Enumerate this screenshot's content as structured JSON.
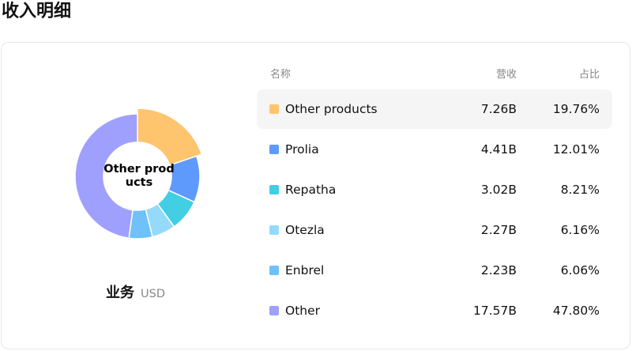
{
  "title": "收入明细",
  "caption": {
    "main": "业务",
    "sub": "USD"
  },
  "donut": {
    "center_label_line1": "Other prod",
    "center_label_line2": "ucts",
    "highlighted": "Other products"
  },
  "table": {
    "headers": {
      "name": "名称",
      "revenue": "营收",
      "share": "占比"
    },
    "rows": [
      {
        "name": "Other products",
        "revenue": "7.26B",
        "share": "19.76%",
        "value": 19.76,
        "color": "#ffc46e"
      },
      {
        "name": "Prolia",
        "revenue": "4.41B",
        "share": "12.01%",
        "value": 12.01,
        "color": "#5e99fc"
      },
      {
        "name": "Repatha",
        "revenue": "3.02B",
        "share": "8.21%",
        "value": 8.21,
        "color": "#42cee3"
      },
      {
        "name": "Otezla",
        "revenue": "2.27B",
        "share": "6.16%",
        "value": 6.16,
        "color": "#95dafb"
      },
      {
        "name": "Enbrel",
        "revenue": "2.23B",
        "share": "6.06%",
        "value": 6.06,
        "color": "#6ec1f9"
      },
      {
        "name": "Other",
        "revenue": "17.57B",
        "share": "47.80%",
        "value": 47.8,
        "color": "#9fa0fd"
      }
    ]
  }
}
